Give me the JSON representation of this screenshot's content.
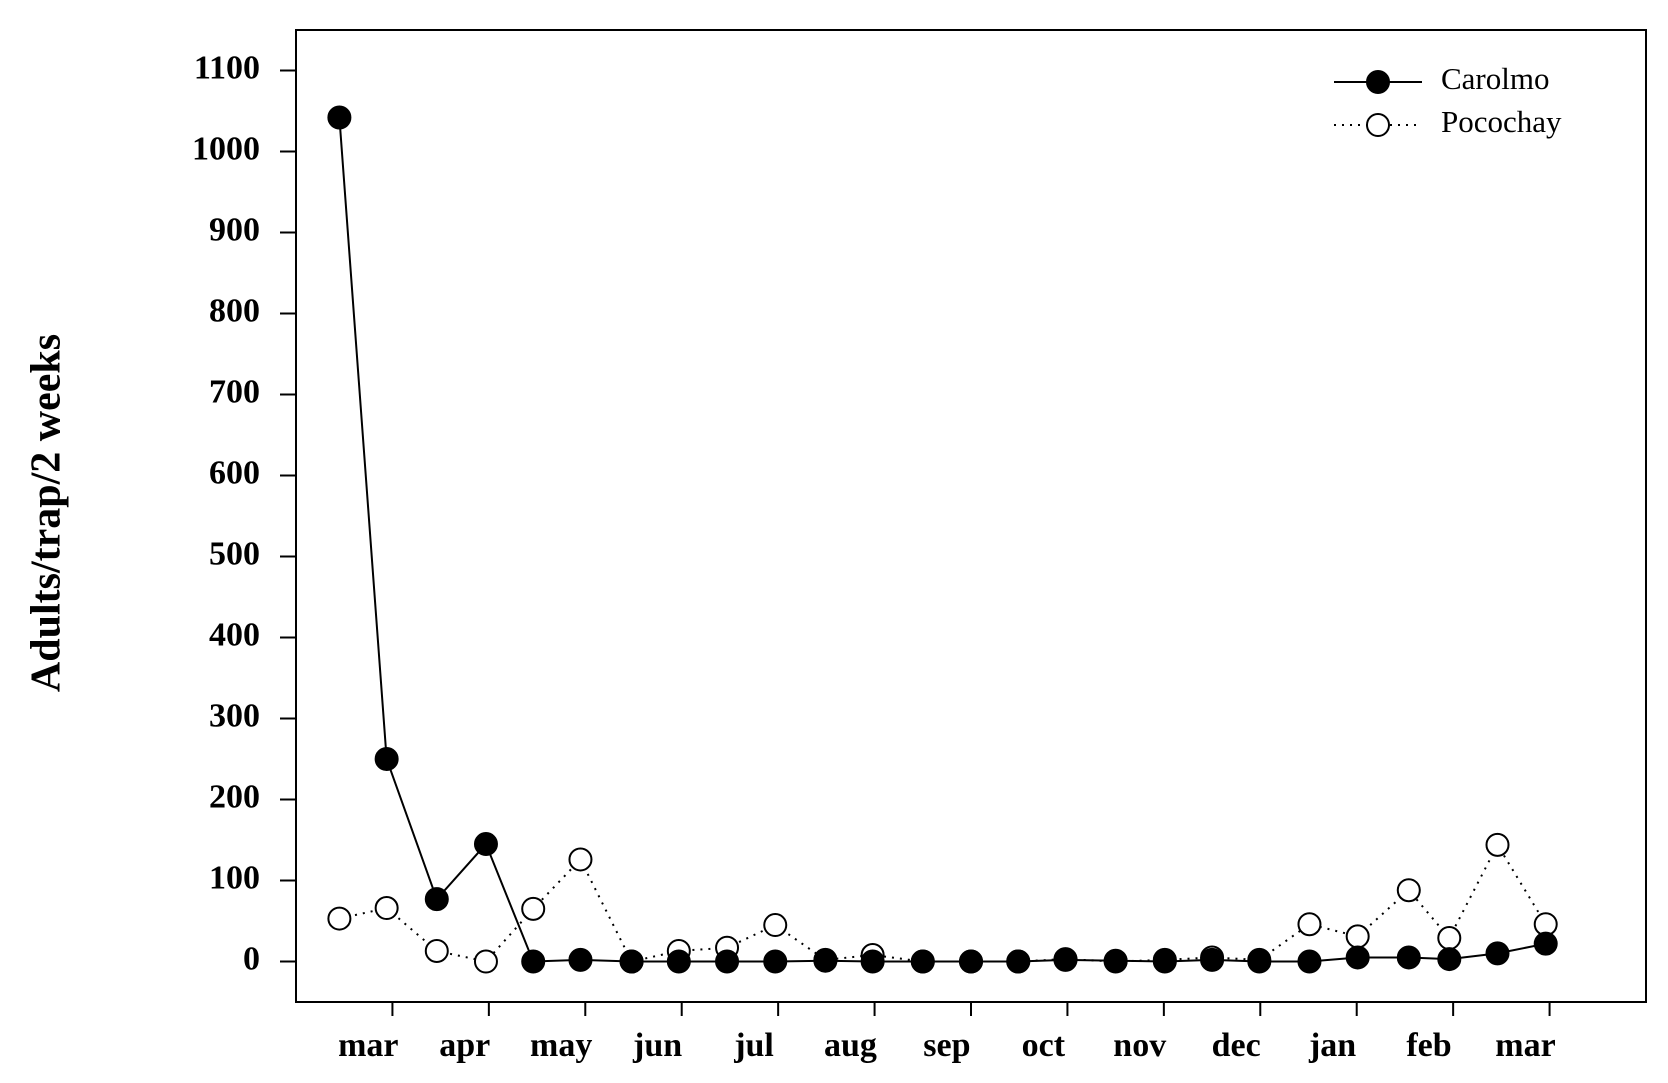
{
  "chart_data": {
    "type": "line",
    "y_label": "Adults/trap/2 weeks",
    "xlim": [
      0,
      14
    ],
    "xtick_marks": [
      1,
      2,
      3,
      4,
      5,
      6,
      7,
      8,
      9,
      10,
      11,
      12,
      13
    ],
    "xticks": [
      {
        "value": 0.75,
        "label": "mar"
      },
      {
        "value": 1.75,
        "label": "apr"
      },
      {
        "value": 2.75,
        "label": "may"
      },
      {
        "value": 3.75,
        "label": "jun"
      },
      {
        "value": 4.75,
        "label": "jul"
      },
      {
        "value": 5.75,
        "label": "aug"
      },
      {
        "value": 6.75,
        "label": "sep"
      },
      {
        "value": 7.75,
        "label": "oct"
      },
      {
        "value": 8.75,
        "label": "nov"
      },
      {
        "value": 9.75,
        "label": "dec"
      },
      {
        "value": 10.75,
        "label": "jan"
      },
      {
        "value": 11.75,
        "label": "feb"
      },
      {
        "value": 12.75,
        "label": "mar"
      }
    ],
    "x": [
      0.45,
      0.94,
      1.46,
      1.97,
      2.46,
      2.95,
      3.48,
      3.97,
      4.47,
      4.97,
      5.49,
      5.98,
      6.5,
      7.0,
      7.49,
      7.98,
      8.5,
      9.01,
      9.5,
      9.99,
      10.51,
      11.01,
      11.54,
      11.96,
      12.46,
      12.96
    ],
    "ylim": [
      -50,
      1150
    ],
    "yticks": [
      0,
      100,
      200,
      300,
      400,
      500,
      600,
      700,
      800,
      900,
      1000,
      1100
    ],
    "legend": "upper right",
    "series": [
      {
        "name": "Carolmo",
        "color": "#000000",
        "marker": "filled",
        "linestyle": "solid",
        "values": [
          1042,
          250,
          77,
          145,
          0,
          2,
          0,
          0,
          0,
          0,
          1,
          0,
          0,
          0,
          0,
          2,
          1,
          0,
          2,
          0,
          0,
          5,
          5,
          3,
          10,
          22
        ]
      },
      {
        "name": "Pocochay",
        "color": "#000000",
        "marker": "open",
        "linestyle": "dotted",
        "values": [
          53,
          66,
          13,
          0,
          65,
          126,
          0,
          13,
          17,
          45,
          2,
          8,
          0,
          0,
          0,
          3,
          0,
          2,
          5,
          2,
          46,
          31,
          88,
          29,
          144,
          46
        ]
      }
    ]
  }
}
